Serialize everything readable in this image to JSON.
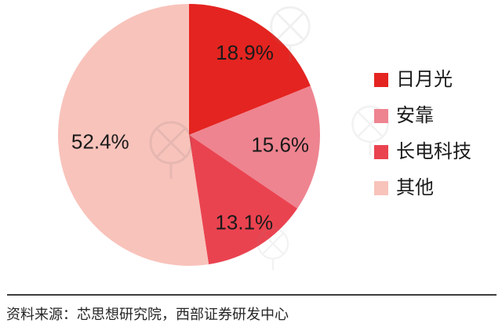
{
  "chart_data": {
    "type": "pie",
    "title": "",
    "legend_position": "right",
    "start_angle_deg": 0,
    "direction": "clockwise",
    "label_color": "#1a1a1a",
    "series": [
      {
        "name": "日月光",
        "value": 18.9,
        "label": "18.9%",
        "color": "#e42420"
      },
      {
        "name": "安靠",
        "value": 15.6,
        "label": "15.6%",
        "color": "#ee8490"
      },
      {
        "name": "长电科技",
        "value": 13.1,
        "label": "13.1%",
        "color": "#ea4350"
      },
      {
        "name": "其他",
        "value": 52.4,
        "label": "52.4%",
        "color": "#f8c3bb"
      }
    ]
  },
  "footer": {
    "source_text": "资料来源：芯思想研究院，西部证券研发中心",
    "divider_color": "#3d3d3d",
    "text_color": "#262626"
  }
}
